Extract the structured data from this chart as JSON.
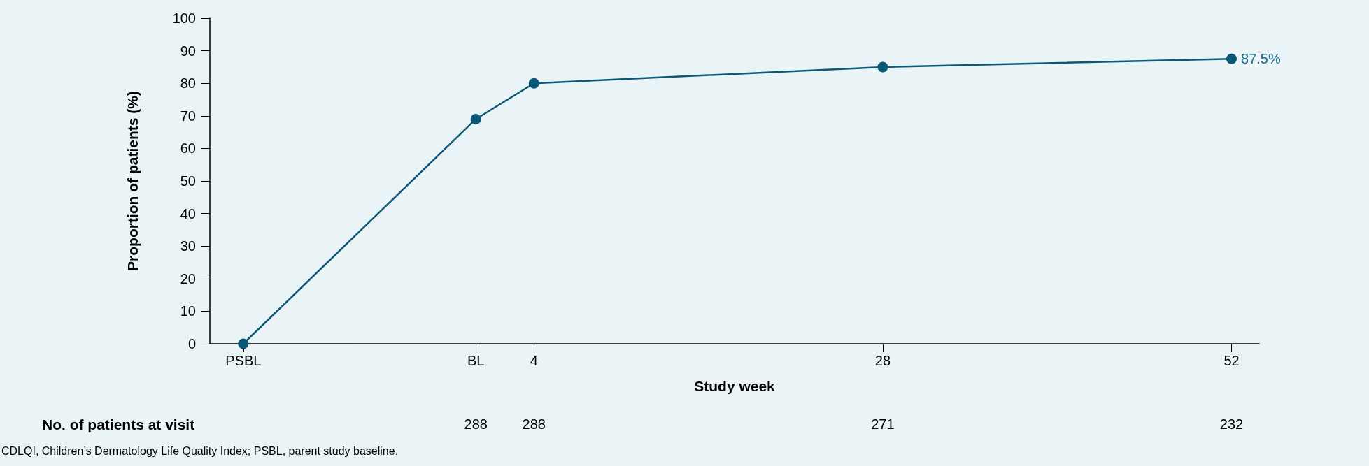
{
  "chart_data": {
    "type": "line",
    "xlabel": "Study week",
    "ylabel": "Proportion of patients (%)",
    "x": [
      -16,
      0,
      4,
      28,
      52
    ],
    "series": [
      {
        "color": "#0b5877",
        "values": [
          0,
          69,
          80,
          85,
          87.5
        ],
        "value_labels": [
          null,
          null,
          null,
          null,
          "87.5%"
        ]
      }
    ],
    "xlim": [
      -18.3,
      53.9
    ],
    "xticks": [
      {
        "value": -16,
        "label": "PSBL"
      },
      {
        "value": 0,
        "label": "BL"
      },
      4,
      28,
      52
    ],
    "ylim": [
      0,
      100
    ],
    "yticks": [
      0,
      10,
      20,
      30,
      40,
      50,
      60,
      70,
      80,
      90,
      100
    ],
    "grid": false,
    "marker": "circle",
    "line_style": "solid",
    "annotations": [
      "No. of patients at visit",
      "288",
      "288",
      "271",
      "232",
      "CDLQI, Children’s Dermatology Life Quality Index; PSBL, parent study baseline."
    ]
  }
}
